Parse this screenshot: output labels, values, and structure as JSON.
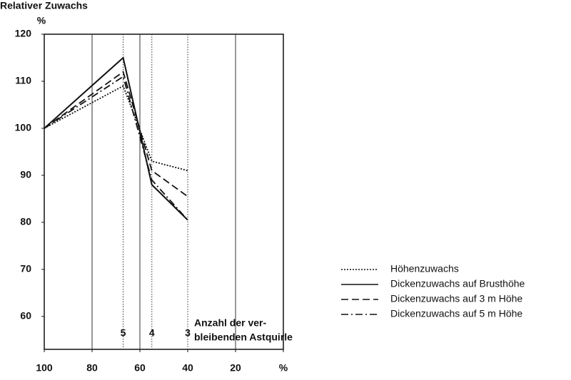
{
  "chart_data": {
    "type": "line",
    "title": "Relativer Zuwachs",
    "y_unit": "%",
    "xlim": [
      100,
      0
    ],
    "ylim": [
      53,
      120
    ],
    "xticks": [
      100,
      80,
      60,
      40,
      20,
      {
        "value": 0,
        "label": "%"
      }
    ],
    "yticks": [
      60,
      70,
      80,
      90,
      100,
      110,
      120
    ],
    "xgrid": [
      80,
      60,
      20
    ],
    "x": [
      100,
      67,
      55,
      40
    ],
    "vlines": [
      {
        "x": 67,
        "label": "5"
      },
      {
        "x": 55,
        "label": "4"
      },
      {
        "x": 40,
        "label": "3"
      }
    ],
    "annotation": [
      "Anzahl der ver-",
      "bleibenden Astquirle"
    ],
    "series": [
      {
        "name": "Höhenzuwachs",
        "color": "#111111",
        "dash": "2,2",
        "values": [
          100,
          109,
          93,
          91
        ]
      },
      {
        "name": "Dickenzuwachs auf Brusthöhe",
        "color": "#111111",
        "dash": "none",
        "values": [
          100,
          115,
          88,
          80.5
        ]
      },
      {
        "name": "Dickenzuwachs auf 3 m Höhe",
        "color": "#111111",
        "dash": "10,5",
        "values": [
          100,
          112,
          91,
          85.5
        ]
      },
      {
        "name": "Dickenzuwachs auf 5 m Höhe",
        "color": "#111111",
        "dash": "10,4,2,4",
        "values": [
          100,
          111,
          89,
          80.5
        ]
      }
    ]
  }
}
